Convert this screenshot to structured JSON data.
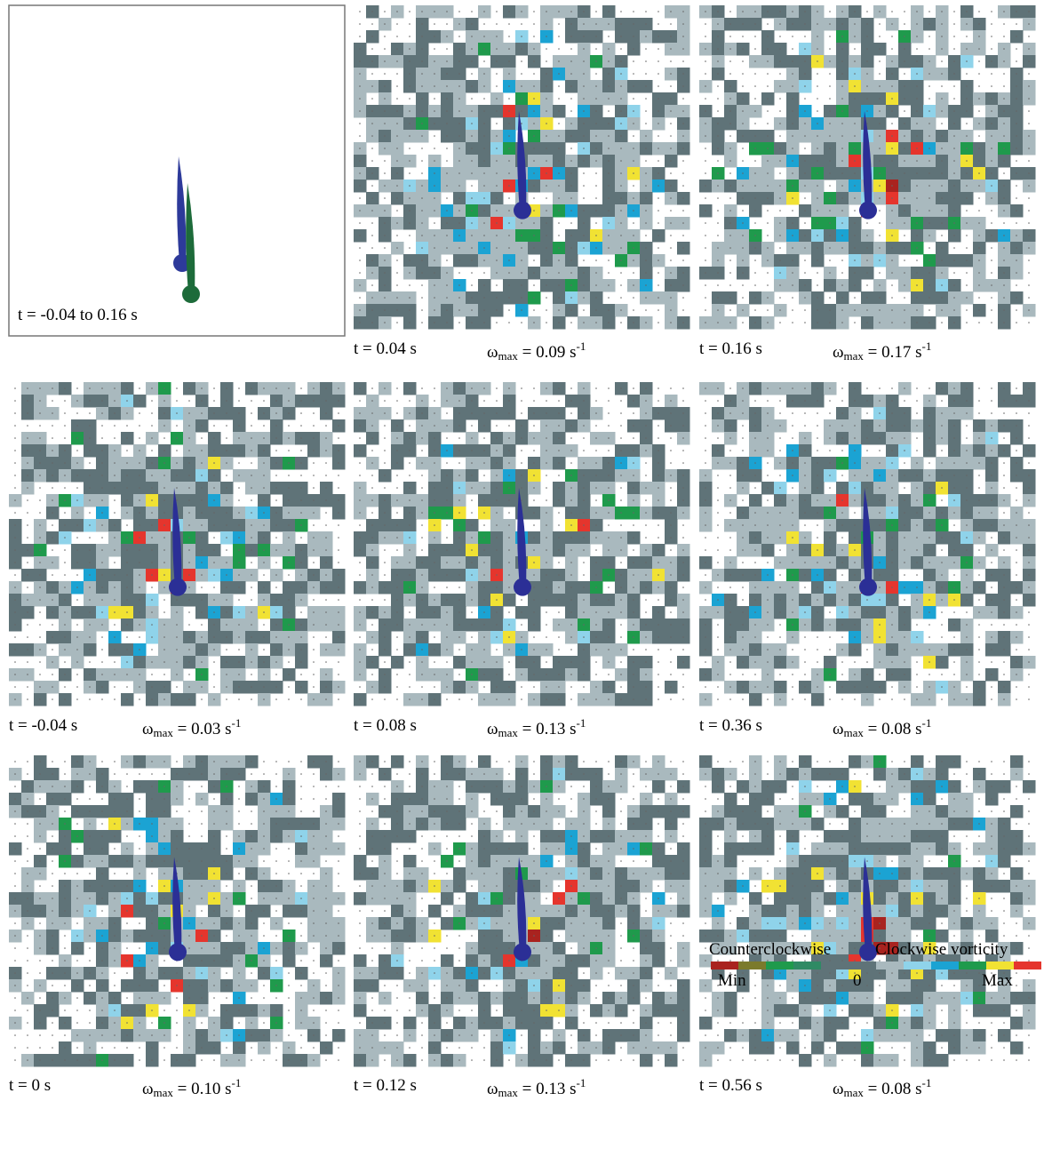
{
  "panels": [
    {
      "time": "t = -0.04 to 0.16 s"
    },
    {
      "time": "t = 0.04 s",
      "omega": {
        "symbol": "ω",
        "subscript": "max",
        "value": "= 0.09 s",
        "superscript": "-1"
      }
    },
    {
      "time": "t = 0.16 s",
      "omega": {
        "symbol": "ω",
        "subscript": "max",
        "value": "= 0.17 s",
        "superscript": "-1"
      }
    },
    {
      "time": "t = -0.04 s",
      "omega": {
        "symbol": "ω",
        "subscript": "max",
        "value": "= 0.03 s",
        "superscript": "-1"
      }
    },
    {
      "time": "t = 0.08 s",
      "omega": {
        "symbol": "ω",
        "subscript": "max",
        "value": "= 0.13 s",
        "superscript": "-1"
      }
    },
    {
      "time": "t = 0.36 s",
      "omega": {
        "symbol": "ω",
        "subscript": "max",
        "value": "= 0.08 s",
        "superscript": "-1"
      }
    },
    {
      "time": "t = 0 s",
      "omega": {
        "symbol": "ω",
        "subscript": "max",
        "value": "= 0.10 s",
        "superscript": "-1"
      }
    },
    {
      "time": "t = 0.12 s",
      "omega": {
        "symbol": "ω",
        "subscript": "max",
        "value": "= 0.13 s",
        "superscript": "-1"
      }
    },
    {
      "time": "t = 0.56 s",
      "omega": {
        "symbol": "ω",
        "subscript": "max",
        "value": "= 0.08 s",
        "superscript": "-1"
      }
    }
  ],
  "legend": {
    "left": "Counterclockwise",
    "right": "Clockwise vorticity",
    "min": "Min",
    "zero": "0",
    "max": "Max"
  }
}
